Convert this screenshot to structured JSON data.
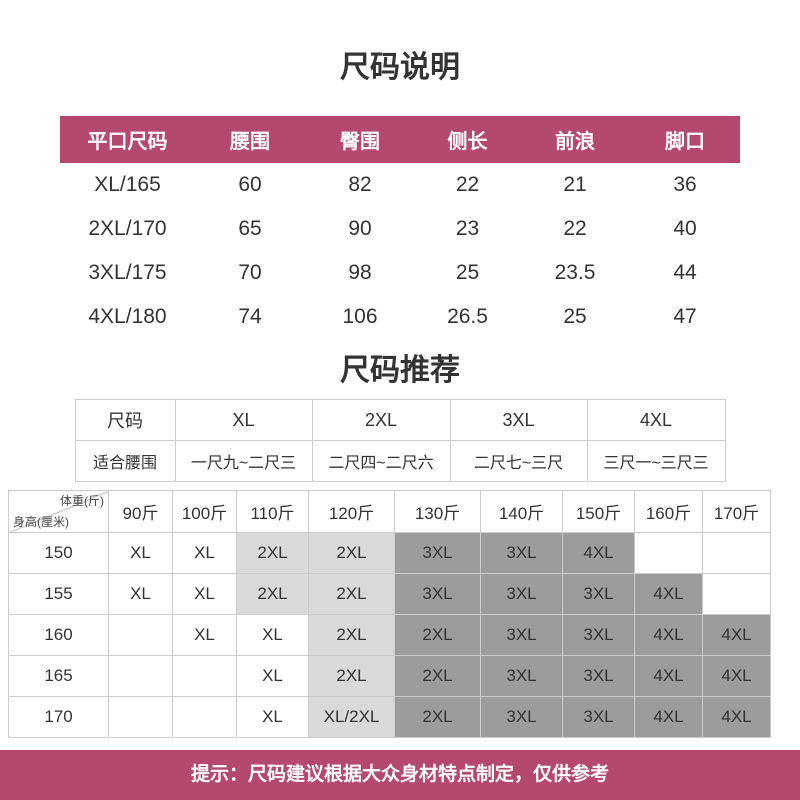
{
  "titles": {
    "spec": "尺码说明",
    "recommend": "尺码推荐"
  },
  "colors": {
    "accent": "#b5486e",
    "light_cell": "#d9d9d9",
    "dark_cell": "#9c9c9c",
    "border": "#cccccc"
  },
  "size_spec_table": {
    "headers": [
      "平口尺码",
      "腰围",
      "臀围",
      "侧长",
      "前浪",
      "脚口"
    ],
    "rows": [
      [
        "XL/165",
        "60",
        "82",
        "22",
        "21",
        "36"
      ],
      [
        "2XL/170",
        "65",
        "90",
        "23",
        "22",
        "40"
      ],
      [
        "3XL/175",
        "70",
        "98",
        "25",
        "23.5",
        "44"
      ],
      [
        "4XL/180",
        "74",
        "106",
        "26.5",
        "25",
        "47"
      ]
    ]
  },
  "recommend_table": {
    "size_row": [
      "尺码",
      "XL",
      "2XL",
      "3XL",
      "4XL"
    ],
    "waist_row": [
      "适合腰围",
      "一尺九~二尺三",
      "二尺四~二尺六",
      "二尺七~三尺",
      "三尺一~三尺三"
    ]
  },
  "matrix_table": {
    "corner_top_right": "体重(斤)",
    "corner_bottom_left": "身高(厘米)",
    "weight_headers": [
      "90斤",
      "100斤",
      "110斤",
      "120斤",
      "130斤",
      "140斤",
      "150斤",
      "160斤",
      "170斤"
    ],
    "rows": [
      {
        "height": "150",
        "cells": [
          {
            "text": "XL",
            "shade": "white"
          },
          {
            "text": "XL",
            "shade": "white"
          },
          {
            "text": "2XL",
            "shade": "light"
          },
          {
            "text": "2XL",
            "shade": "light"
          },
          {
            "text": "3XL",
            "shade": "dark"
          },
          {
            "text": "3XL",
            "shade": "dark"
          },
          {
            "text": "4XL",
            "shade": "dark"
          },
          {
            "text": "",
            "shade": "white"
          },
          {
            "text": "",
            "shade": "white"
          }
        ]
      },
      {
        "height": "155",
        "cells": [
          {
            "text": "XL",
            "shade": "white"
          },
          {
            "text": "XL",
            "shade": "white"
          },
          {
            "text": "2XL",
            "shade": "light"
          },
          {
            "text": "2XL",
            "shade": "light"
          },
          {
            "text": "3XL",
            "shade": "dark"
          },
          {
            "text": "3XL",
            "shade": "dark"
          },
          {
            "text": "3XL",
            "shade": "dark"
          },
          {
            "text": "4XL",
            "shade": "dark"
          },
          {
            "text": "",
            "shade": "white"
          }
        ]
      },
      {
        "height": "160",
        "cells": [
          {
            "text": "",
            "shade": "white"
          },
          {
            "text": "XL",
            "shade": "white"
          },
          {
            "text": "XL",
            "shade": "white"
          },
          {
            "text": "2XL",
            "shade": "light"
          },
          {
            "text": "2XL",
            "shade": "dark"
          },
          {
            "text": "3XL",
            "shade": "dark"
          },
          {
            "text": "3XL",
            "shade": "dark"
          },
          {
            "text": "4XL",
            "shade": "dark"
          },
          {
            "text": "4XL",
            "shade": "dark"
          }
        ]
      },
      {
        "height": "165",
        "cells": [
          {
            "text": "",
            "shade": "white"
          },
          {
            "text": "",
            "shade": "white"
          },
          {
            "text": "XL",
            "shade": "white"
          },
          {
            "text": "2XL",
            "shade": "light"
          },
          {
            "text": "2XL",
            "shade": "dark"
          },
          {
            "text": "3XL",
            "shade": "dark"
          },
          {
            "text": "3XL",
            "shade": "dark"
          },
          {
            "text": "4XL",
            "shade": "dark"
          },
          {
            "text": "4XL",
            "shade": "dark"
          }
        ]
      },
      {
        "height": "170",
        "cells": [
          {
            "text": "",
            "shade": "white"
          },
          {
            "text": "",
            "shade": "white"
          },
          {
            "text": "XL",
            "shade": "white"
          },
          {
            "text": "XL/2XL",
            "shade": "light"
          },
          {
            "text": "2XL",
            "shade": "dark"
          },
          {
            "text": "3XL",
            "shade": "dark"
          },
          {
            "text": "3XL",
            "shade": "dark"
          },
          {
            "text": "4XL",
            "shade": "dark"
          },
          {
            "text": "4XL",
            "shade": "dark"
          }
        ]
      }
    ]
  },
  "tip": {
    "text": "提示：尺码建议根据大众身材特点制定，仅供参考"
  }
}
